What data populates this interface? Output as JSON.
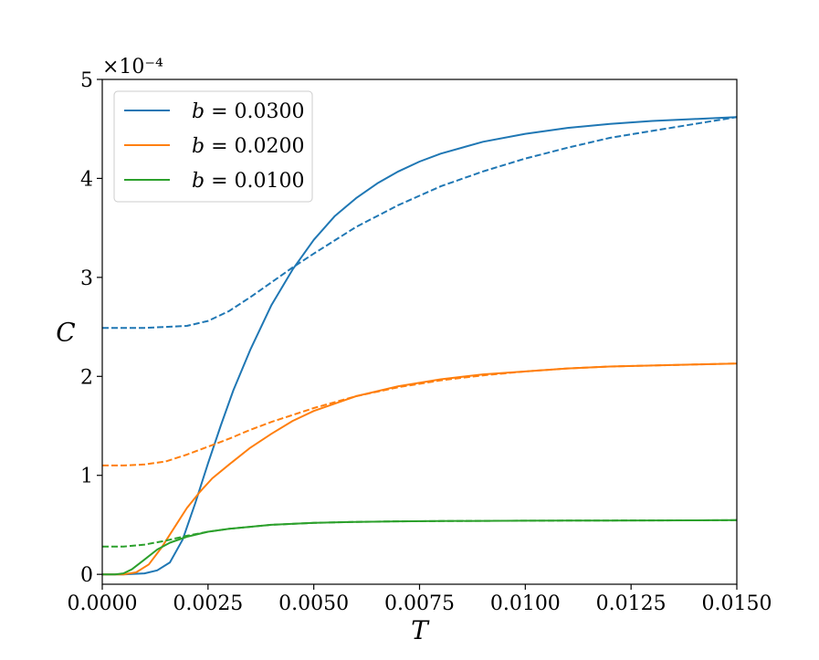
{
  "chart_data": {
    "type": "line",
    "title": "",
    "xlabel": "T",
    "ylabel": "C",
    "xlim": [
      0.0,
      0.015
    ],
    "ylim": [
      -0.1,
      5.0
    ],
    "y_offset_text": "×10⁻⁴",
    "x_ticks": [
      0.0,
      0.0025,
      0.005,
      0.0075,
      0.01,
      0.0125,
      0.015
    ],
    "x_tick_labels": [
      "0.0000",
      "0.0025",
      "0.0050",
      "0.0075",
      "0.0100",
      "0.0125",
      "0.0150"
    ],
    "y_ticks": [
      0,
      1,
      2,
      3,
      4,
      5
    ],
    "y_tick_labels": [
      "0",
      "1",
      "2",
      "3",
      "4",
      "5"
    ],
    "grid": false,
    "legend_position": "top-left",
    "series": [
      {
        "name": "b = 0.0300",
        "b_value": "0.0300",
        "color": "#1f77b4",
        "solid": {
          "x": [
            0.0,
            0.0005,
            0.001,
            0.0013,
            0.0016,
            0.0019,
            0.0022,
            0.0025,
            0.0028,
            0.0031,
            0.0035,
            0.004,
            0.0045,
            0.005,
            0.0055,
            0.006,
            0.0065,
            0.007,
            0.0075,
            0.008,
            0.009,
            0.01,
            0.011,
            0.012,
            0.013,
            0.014,
            0.015
          ],
          "y": [
            0.0,
            0.0,
            0.01,
            0.04,
            0.12,
            0.35,
            0.72,
            1.12,
            1.5,
            1.86,
            2.27,
            2.72,
            3.08,
            3.38,
            3.62,
            3.8,
            3.95,
            4.07,
            4.17,
            4.25,
            4.37,
            4.45,
            4.51,
            4.55,
            4.58,
            4.6,
            4.62
          ]
        },
        "dashed": {
          "x": [
            0.0,
            0.001,
            0.0015,
            0.002,
            0.0025,
            0.003,
            0.0035,
            0.004,
            0.0045,
            0.005,
            0.006,
            0.007,
            0.008,
            0.009,
            0.01,
            0.011,
            0.012,
            0.013,
            0.014,
            0.015
          ],
          "y": [
            2.49,
            2.49,
            2.5,
            2.51,
            2.56,
            2.66,
            2.8,
            2.95,
            3.1,
            3.24,
            3.51,
            3.73,
            3.92,
            4.07,
            4.2,
            4.31,
            4.41,
            4.48,
            4.55,
            4.62
          ]
        }
      },
      {
        "name": "b = 0.0200",
        "b_value": "0.0200",
        "color": "#ff7f0e",
        "solid": {
          "x": [
            0.0,
            0.0005,
            0.0008,
            0.0011,
            0.0014,
            0.0017,
            0.002,
            0.0023,
            0.0026,
            0.003,
            0.0035,
            0.004,
            0.0045,
            0.005,
            0.006,
            0.007,
            0.008,
            0.009,
            0.01,
            0.011,
            0.012,
            0.013,
            0.014,
            0.015
          ],
          "y": [
            0.0,
            0.0,
            0.02,
            0.1,
            0.27,
            0.47,
            0.67,
            0.83,
            0.97,
            1.11,
            1.28,
            1.42,
            1.55,
            1.65,
            1.8,
            1.9,
            1.97,
            2.02,
            2.05,
            2.08,
            2.1,
            2.11,
            2.12,
            2.13
          ]
        },
        "dashed": {
          "x": [
            0.0,
            0.0005,
            0.001,
            0.0015,
            0.002,
            0.0025,
            0.003,
            0.0035,
            0.004,
            0.0045,
            0.005,
            0.006,
            0.007,
            0.008,
            0.009,
            0.01,
            0.011,
            0.012,
            0.013,
            0.014,
            0.015
          ],
          "y": [
            1.1,
            1.1,
            1.11,
            1.14,
            1.21,
            1.29,
            1.37,
            1.46,
            1.54,
            1.61,
            1.68,
            1.8,
            1.89,
            1.96,
            2.01,
            2.05,
            2.08,
            2.1,
            2.11,
            2.12,
            2.13
          ]
        }
      },
      {
        "name": "b = 0.0100",
        "b_value": "0.0100",
        "color": "#2ca02c",
        "solid": {
          "x": [
            0.0,
            0.0003,
            0.0005,
            0.0007,
            0.001,
            0.0013,
            0.0016,
            0.002,
            0.0025,
            0.003,
            0.004,
            0.005,
            0.006,
            0.007,
            0.008,
            0.009,
            0.01,
            0.011,
            0.012,
            0.013,
            0.014,
            0.015
          ],
          "y": [
            0.0,
            0.0,
            0.01,
            0.05,
            0.15,
            0.25,
            0.32,
            0.38,
            0.43,
            0.46,
            0.5,
            0.52,
            0.53,
            0.535,
            0.538,
            0.54,
            0.542,
            0.543,
            0.544,
            0.545,
            0.546,
            0.547
          ]
        },
        "dashed": {
          "x": [
            0.0,
            0.0005,
            0.001,
            0.0015,
            0.002,
            0.0025,
            0.003,
            0.004,
            0.005,
            0.006,
            0.007,
            0.008,
            0.009,
            0.01,
            0.011,
            0.012,
            0.013,
            0.014,
            0.015
          ],
          "y": [
            0.28,
            0.28,
            0.3,
            0.34,
            0.39,
            0.43,
            0.46,
            0.5,
            0.52,
            0.53,
            0.535,
            0.538,
            0.54,
            0.542,
            0.543,
            0.544,
            0.545,
            0.546,
            0.547
          ]
        }
      }
    ]
  }
}
